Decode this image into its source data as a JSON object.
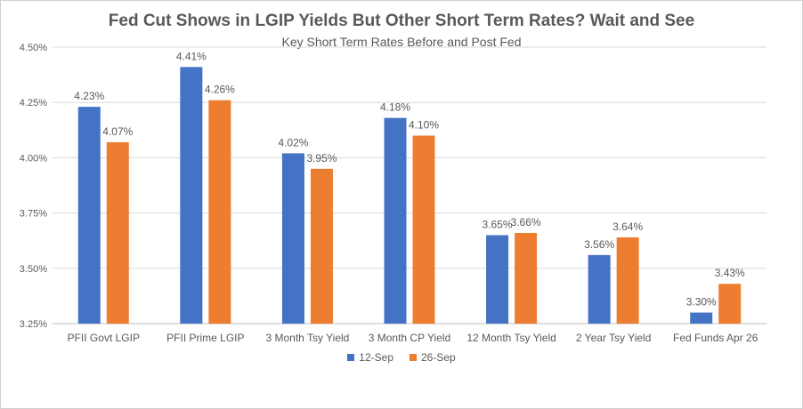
{
  "chart_data": {
    "type": "bar",
    "title": "Fed Cut Shows in LGIP Yields But Other Short Term Rates? Wait and See",
    "subtitle": "Key Short Term Rates Before and Post Fed",
    "categories": [
      "PFII Govt LGIP",
      "PFII Prime LGIP",
      "3 Month Tsy Yield",
      "3 Month CP Yield",
      "12 Month Tsy Yield",
      "2 Year Tsy Yield",
      "Fed Funds Apr 26"
    ],
    "series": [
      {
        "name": "12-Sep",
        "color": "#4472c4",
        "values": [
          4.23,
          4.41,
          4.02,
          4.18,
          3.65,
          3.56,
          3.3
        ],
        "labels": [
          "4.23%",
          "4.41%",
          "4.02%",
          "4.18%",
          "3.65%",
          "3.56%",
          "3.30%"
        ]
      },
      {
        "name": "26-Sep",
        "color": "#ed7d31",
        "values": [
          4.07,
          4.26,
          3.95,
          4.1,
          3.66,
          3.64,
          3.43
        ],
        "labels": [
          "4.07%",
          "4.26%",
          "3.95%",
          "4.10%",
          "3.66%",
          "3.64%",
          "3.43%"
        ]
      }
    ],
    "ylim": [
      3.25,
      4.5
    ],
    "yticks": [
      3.25,
      3.5,
      3.75,
      4.0,
      4.25,
      4.5
    ],
    "ytick_labels": [
      "3.25%",
      "3.50%",
      "3.75%",
      "4.00%",
      "4.25%",
      "4.50%"
    ],
    "xlabel": "",
    "ylabel": "",
    "grid": true,
    "legend_position": "bottom"
  }
}
